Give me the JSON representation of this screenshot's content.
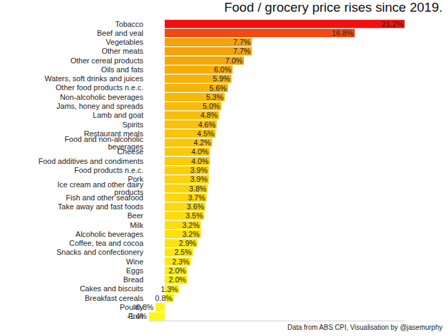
{
  "chart_data": {
    "type": "bar",
    "title": "Food / grocery price rises since 2019.",
    "source": "Data from ABS CPI, Visualisation by @jasemurphy",
    "orientation": "horizontal",
    "data_labels": true,
    "tick_labels": "y",
    "grid": false,
    "categories": [
      "Tobacco",
      "Beef and veal",
      "Vegetables",
      "Other meats",
      "Other cereal products",
      "Oils and fats",
      "Waters, soft drinks and juices",
      "Other food products n.e.c.",
      "Non-alcoholic beverages",
      "Jams, honey and spreads",
      "Lamb and goat",
      "Spirits",
      "Restaurant meals",
      "Food and non-alcoholic beverages",
      "Cheese",
      "Food additives and condiments",
      "Food products n.e.c.",
      "Pork",
      "Ice cream and other dairy products",
      "Fish and other seafood",
      "Take away and fast foods",
      "Beer",
      "Milk",
      "Alcoholic beverages",
      "Coffee, tea and cocoa",
      "Snacks and confectionery",
      "Wine",
      "Eggs",
      "Bread",
      "Cakes and biscuits",
      "Breakfast cereals",
      "Poultry",
      "Fruit"
    ],
    "values": [
      21.2,
      16.8,
      7.7,
      7.7,
      7.0,
      6.0,
      5.9,
      5.6,
      5.3,
      5.0,
      4.8,
      4.6,
      4.5,
      4.2,
      4.0,
      4.0,
      3.9,
      3.9,
      3.8,
      3.7,
      3.6,
      3.5,
      3.2,
      3.2,
      2.9,
      2.5,
      2.3,
      2.0,
      2.0,
      1.3,
      0.8,
      -0.8,
      -1.4
    ],
    "value_labels": [
      "21.2%",
      "16.8%",
      "7.7%",
      "7.7%",
      "7.0%",
      "6.0%",
      "5.9%",
      "5.6%",
      "5.3%",
      "5.0%",
      "4.8%",
      "4.6%",
      "4.5%",
      "4.2%",
      "4.0%",
      "4.0%",
      "3.9%",
      "3.9%",
      "3.8%",
      "3.7%",
      "3.6%",
      "3.5%",
      "3.2%",
      "3.2%",
      "2.9%",
      "2.5%",
      "2.3%",
      "2.0%",
      "2.0%",
      "1.3%",
      "0.8%",
      "-0.8%",
      "-1.4%"
    ],
    "colors": [
      "#f40f0f",
      "#f24a12",
      "#f4a20a",
      "#f4a40a",
      "#f5a80a",
      "#f5ad0a",
      "#f6b10a",
      "#f6b40a",
      "#f6b80b",
      "#f7bb0b",
      "#f7be0b",
      "#f8c10b",
      "#f8c40c",
      "#f8c70c",
      "#f9ca0c",
      "#f9cc0c",
      "#f9cf0d",
      "#fad20d",
      "#fad40d",
      "#fad70e",
      "#fbd90e",
      "#fbdc0e",
      "#fbde0f",
      "#fce10f",
      "#fce30f",
      "#fce610",
      "#fde810",
      "#fdeb11",
      "#fded11",
      "#feef12",
      "#fef213",
      "#fff514",
      "#fff716"
    ],
    "xlim": [
      -1.4,
      21.2
    ]
  }
}
